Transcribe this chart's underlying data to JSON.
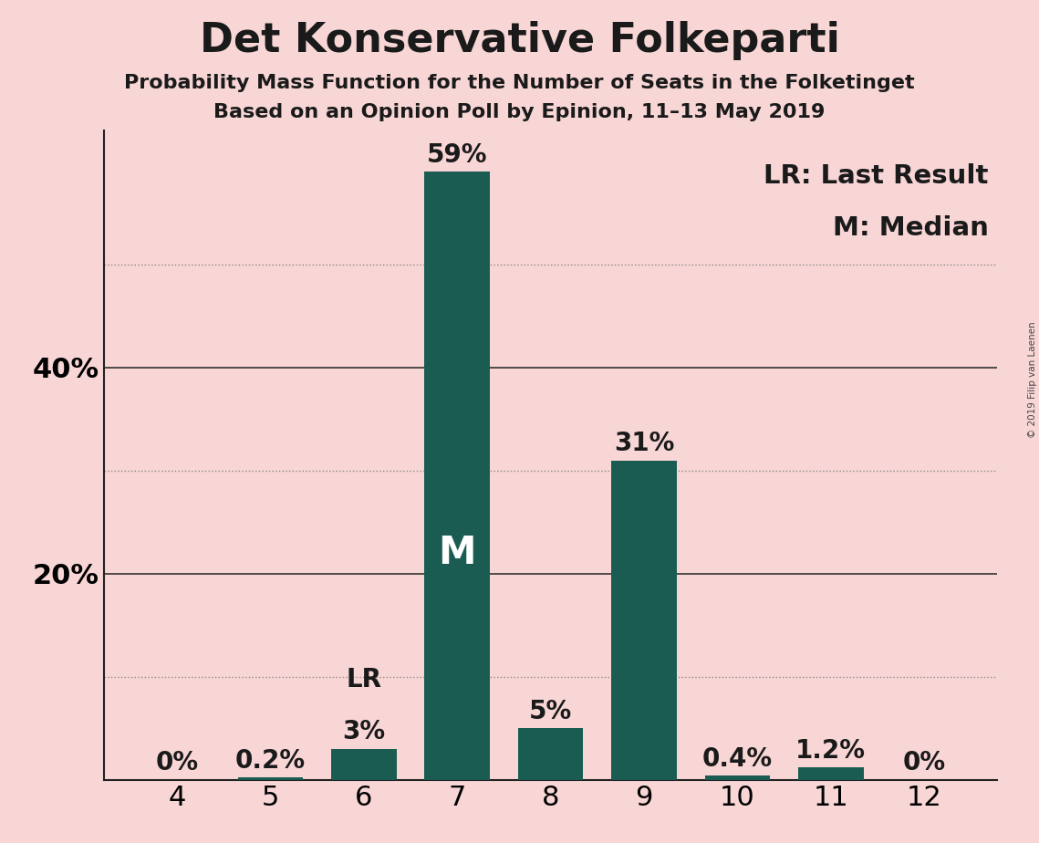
{
  "title": "Det Konservative Folkeparti",
  "subtitle1": "Probability Mass Function for the Number of Seats in the Folketinget",
  "subtitle2": "Based on an Opinion Poll by Epinion, 11–13 May 2019",
  "categories": [
    4,
    5,
    6,
    7,
    8,
    9,
    10,
    11,
    12
  ],
  "values": [
    0.0,
    0.2,
    3.0,
    59.0,
    5.0,
    31.0,
    0.4,
    1.2,
    0.0
  ],
  "bar_labels": [
    "0%",
    "0.2%",
    "3%",
    "59%",
    "5%",
    "31%",
    "0.4%",
    "1.2%",
    "0%"
  ],
  "bar_color": "#1a5c52",
  "background_color": "#f9d6d6",
  "label_color": "#1a1a1a",
  "title_fontsize": 32,
  "subtitle_fontsize": 16,
  "bar_label_fontsize": 20,
  "axis_tick_fontsize": 22,
  "legend_fontsize": 21,
  "median_bar": 7,
  "last_result_bar": 6,
  "median_label": "M",
  "last_result_label": "LR",
  "legend_text1": "LR: Last Result",
  "legend_text2": "M: Median",
  "watermark": "© 2019 Filip van Laenen",
  "ylim": [
    0,
    63
  ],
  "solid_yticks": [
    0,
    20,
    40
  ],
  "dotted_yticks": [
    10,
    30,
    50
  ],
  "solid_grid_color": "#333333",
  "dotted_grid_color": "#888888",
  "spine_color": "#222222"
}
